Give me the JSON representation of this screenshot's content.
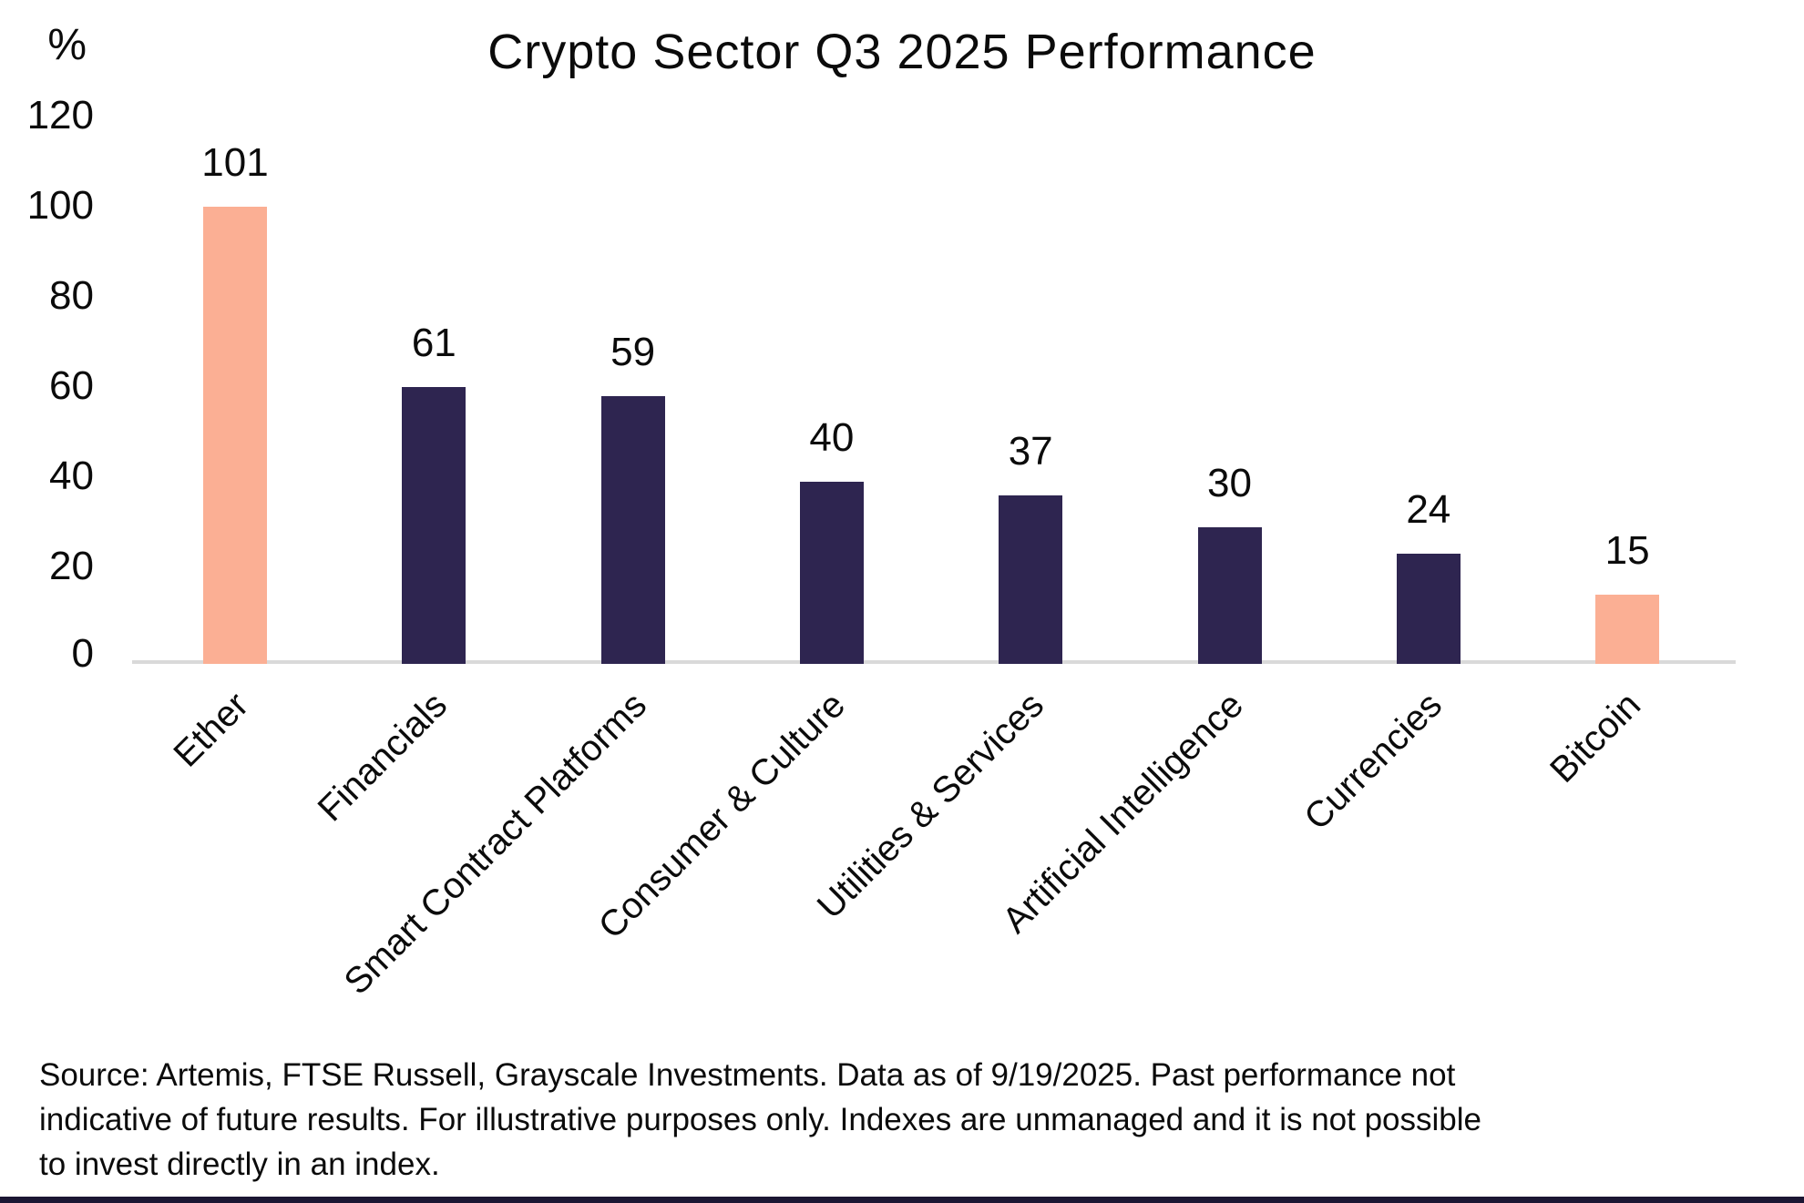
{
  "chart_data": {
    "type": "bar",
    "title": "Crypto Sector Q3 2025 Performance",
    "ylabel": "%",
    "xlabel": "",
    "categories": [
      "Ether",
      "Financials",
      "Smart Contract Platforms",
      "Consumer & Culture",
      "Utilities & Services",
      "Artificial Intelligence",
      "Currencies",
      "Bitcoin"
    ],
    "values": [
      101,
      61,
      59,
      40,
      37,
      30,
      24,
      15
    ],
    "bar_colors": [
      "#FBAF94",
      "#2E2550",
      "#2E2550",
      "#2E2550",
      "#2E2550",
      "#2E2550",
      "#2E2550",
      "#FBAF94"
    ],
    "ylim": [
      0,
      120
    ],
    "yticks": [
      0,
      20,
      40,
      60,
      80,
      100,
      120
    ],
    "grid": false,
    "data_labels": true,
    "legend_position": "none",
    "x_tick_rotation_deg": 45
  },
  "colors": {
    "highlight": "#FBAF94",
    "primary": "#2E2550",
    "axis_line": "#D9D9D9",
    "footer_bar": "#1B1633",
    "text": "#0B0B0B"
  },
  "footer": {
    "source_lines": [
      "Source: Artemis, FTSE Russell, Grayscale Investments. Data as of 9/19/2025. Past performance not",
      "indicative of future results. For illustrative purposes only. Indexes are unmanaged and it is not possible",
      "to invest directly in an index."
    ]
  }
}
